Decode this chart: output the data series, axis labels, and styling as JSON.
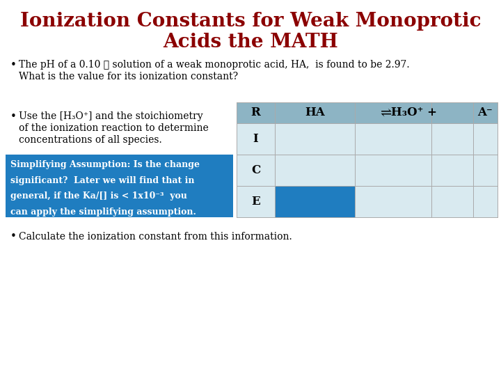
{
  "title_line1": "Ionization Constants for Weak Monoprotic",
  "title_line2": "Acids the MATH",
  "title_color": "#8B0000",
  "bg_color": "#FFFFFF",
  "bullet1_line1": "The pH of a 0.10 ℳ solution of a weak monoprotic acid, HA,  is found to be 2.97.",
  "bullet1_line2": "What is the value for its ionization constant?",
  "bullet2_line1": "Use the [H₃O⁺] and the stoichiometry",
  "bullet2_line2": "of the ionization reaction to determine",
  "bullet2_line3": "concentrations of all species.",
  "blue_box_line1": "Simplifying Assumption: Is the change",
  "blue_box_line2": "significant?  Later we will find that in",
  "blue_box_line3": "general, if the Ka/[] is < 1x10⁻³  you",
  "blue_box_line4": "can apply the simplifying assumption.",
  "blue_box_bg": "#1F7DC0",
  "blue_box_text_color": "#FFFFFF",
  "bullet3": "Calculate the ionization constant from this information.",
  "table_header_bg": "#8DB4C4",
  "table_row_bg": "#D9EAF0",
  "table_highlight_bg": "#1F7DC0",
  "text_color": "#000000",
  "grid_color": "#AAAAAA"
}
